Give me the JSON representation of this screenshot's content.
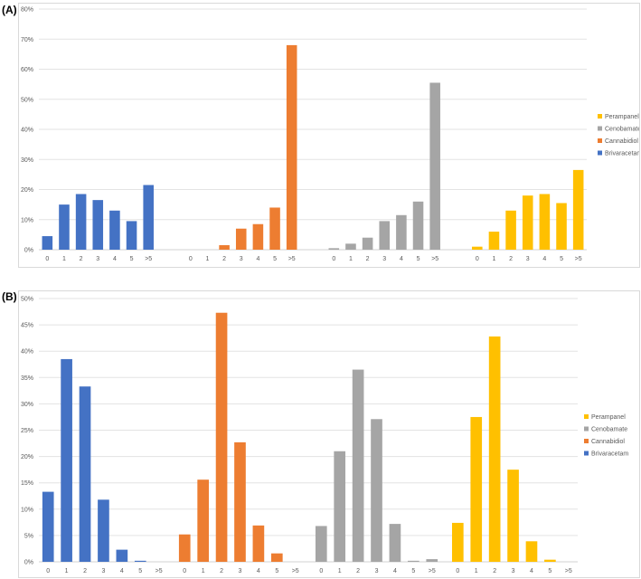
{
  "panel_labels": [
    "(A)",
    "(B)"
  ],
  "chart_data": [
    {
      "type": "bar",
      "panel": "(A)",
      "categories": [
        "0",
        "1",
        "2",
        "3",
        "4",
        "5",
        ">5"
      ],
      "series": [
        {
          "name": "Brivaracetam",
          "color": "#4472C4",
          "values": [
            4.5,
            15,
            18.5,
            16.5,
            13,
            9.5,
            21.5
          ]
        },
        {
          "name": "Cannabidiol",
          "color": "#ED7D31",
          "values": [
            0,
            0,
            1.5,
            7,
            8.5,
            14,
            68
          ]
        },
        {
          "name": "Cenobamate",
          "color": "#A5A5A5",
          "values": [
            0.5,
            2,
            4,
            9.5,
            11.5,
            16,
            55.5
          ]
        },
        {
          "name": "Perampanel",
          "color": "#FFC000",
          "values": [
            1,
            6,
            13,
            18,
            18.5,
            15.5,
            26.5
          ]
        }
      ],
      "ylim": [
        0,
        80
      ],
      "yticks": [
        "0%",
        "10%",
        "20%",
        "30%",
        "40%",
        "50%",
        "60%",
        "70%",
        "80%"
      ],
      "grid": true,
      "legend": {
        "position": "right",
        "entries": [
          "Perampanel",
          "Cenobamate",
          "Cannabidiol",
          "Brivaracetam"
        ]
      }
    },
    {
      "type": "bar",
      "panel": "(B)",
      "categories": [
        "0",
        "1",
        "2",
        "3",
        "4",
        "5",
        ">5"
      ],
      "series": [
        {
          "name": "Brivaracetam",
          "color": "#4472C4",
          "values": [
            13.3,
            38.5,
            33.3,
            11.8,
            2.3,
            0.2,
            0
          ]
        },
        {
          "name": "Cannabidiol",
          "color": "#ED7D31",
          "values": [
            5.2,
            15.6,
            47.3,
            22.7,
            6.9,
            1.6,
            0
          ]
        },
        {
          "name": "Cenobamate",
          "color": "#A5A5A5",
          "values": [
            6.8,
            21,
            36.5,
            27.1,
            7.2,
            0.2,
            0.5
          ]
        },
        {
          "name": "Perampanel",
          "color": "#FFC000",
          "values": [
            7.4,
            27.5,
            42.8,
            17.5,
            3.9,
            0.4,
            0
          ]
        }
      ],
      "ylim": [
        0,
        50
      ],
      "yticks": [
        "0%",
        "5%",
        "10%",
        "15%",
        "20%",
        "25%",
        "30%",
        "35%",
        "40%",
        "45%",
        "50%"
      ],
      "grid": true,
      "legend": {
        "position": "right",
        "entries": [
          "Perampanel",
          "Cenobamate",
          "Cannabidiol",
          "Brivaracetam"
        ]
      }
    }
  ]
}
